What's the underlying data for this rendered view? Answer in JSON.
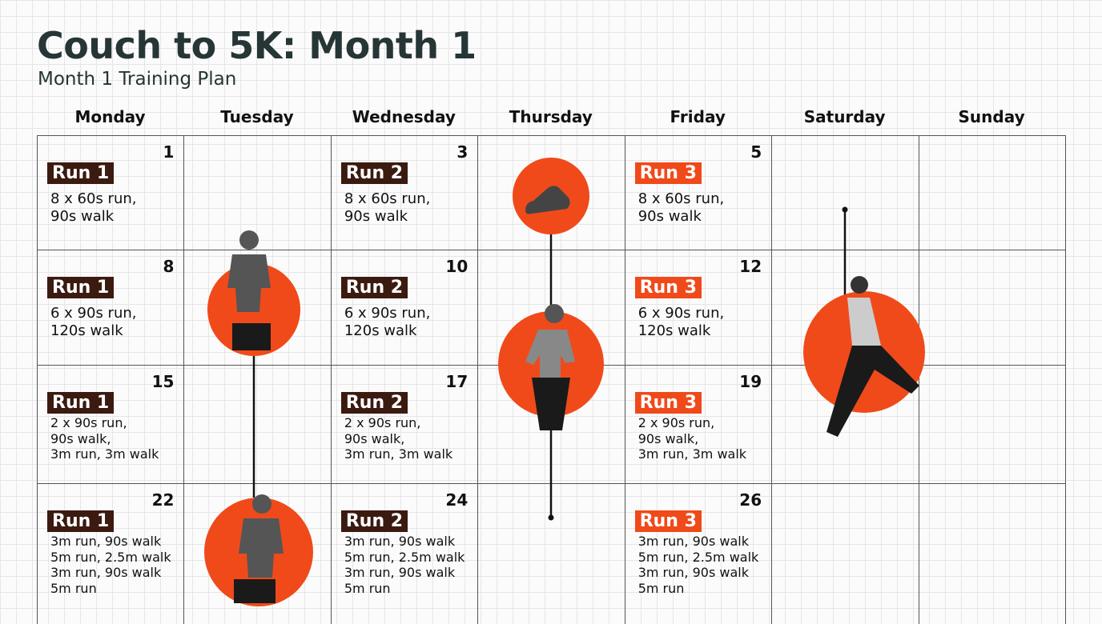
{
  "header": {
    "title": "Couch to 5K: Month 1",
    "subtitle": "Month 1 Training Plan"
  },
  "days": [
    "Monday",
    "Tuesday",
    "Wednesday",
    "Thursday",
    "Friday",
    "Saturday",
    "Sunday"
  ],
  "weeks": [
    {
      "cells": [
        {
          "day_number": 1,
          "run": "Run 1",
          "lines": [
            "8 x 60s run,",
            "90s walk"
          ]
        },
        null,
        {
          "day_number": 3,
          "run": "Run 2",
          "lines": [
            "8 x 60s run,",
            "90s walk"
          ]
        },
        null,
        {
          "day_number": 5,
          "run": "Run 3",
          "lines": [
            "8 x 60s run,",
            "90s walk"
          ]
        },
        null,
        null
      ]
    },
    {
      "cells": [
        {
          "day_number": 8,
          "run": "Run 1",
          "lines": [
            "6 x 90s run,",
            "120s walk"
          ]
        },
        null,
        {
          "day_number": 10,
          "run": "Run 2",
          "lines": [
            "6 x 90s run,",
            "120s walk"
          ]
        },
        null,
        {
          "day_number": 12,
          "run": "Run 3",
          "lines": [
            "6 x 90s run,",
            "120s walk"
          ]
        },
        null,
        null
      ]
    },
    {
      "cells": [
        {
          "day_number": 15,
          "run": "Run 1",
          "lines": [
            "2 x 90s run,",
            "90s walk,",
            "3m run, 3m walk"
          ]
        },
        null,
        {
          "day_number": 17,
          "run": "Run 2",
          "lines": [
            "2 x 90s run,",
            "90s walk,",
            "3m run, 3m walk"
          ]
        },
        null,
        {
          "day_number": 19,
          "run": "Run 3",
          "lines": [
            "2 x 90s run,",
            "90s walk,",
            "3m run, 3m walk"
          ]
        },
        null,
        null
      ]
    },
    {
      "cells": [
        {
          "day_number": 22,
          "run": "Run 1",
          "lines": [
            "3m run, 90s walk",
            "5m run, 2.5m walk",
            "3m run, 90s walk",
            "5m run"
          ]
        },
        null,
        {
          "day_number": 24,
          "run": "Run 2",
          "lines": [
            "3m run, 90s walk",
            "5m run, 2.5m walk",
            "3m run, 90s walk",
            "5m run"
          ]
        },
        null,
        {
          "day_number": 26,
          "run": "Run 3",
          "lines": [
            "3m run, 90s walk",
            "5m run, 2.5m walk",
            "3m run, 90s walk",
            "5m run"
          ]
        },
        null,
        null
      ]
    }
  ]
}
